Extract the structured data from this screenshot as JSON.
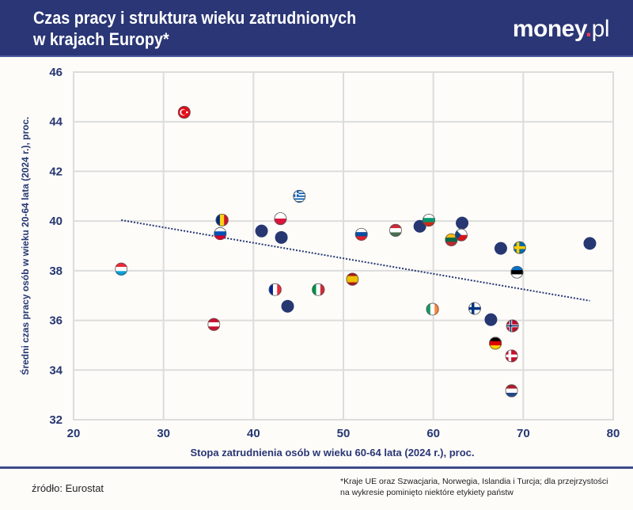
{
  "header": {
    "title_line1": "Czas pracy i struktura wieku zatrudnionych",
    "title_line2": "w krajach Europy*",
    "logo_main": "money",
    "logo_dot": ".",
    "logo_suffix": "pl"
  },
  "footer": {
    "source": "źródło: Eurostat",
    "note_line1": "*Kraje UE oraz Szwacjaria, Norwegia, Islandia i Turcja; dla przejrzystości",
    "note_line2": "na wykresie pominięto niektóre etykiety państw"
  },
  "colors": {
    "header": "#2a3675",
    "point": "#263772",
    "grid": "#dcdcdc",
    "trend": "#263772"
  },
  "chart_data": {
    "type": "scatter",
    "xlabel": "Stopa zatrudnienia osób w wieku 60-64 lata (2024 r.), proc.",
    "ylabel": "Średni czas pracy osób w wieku 20-64 lata (2024 r.), proc.",
    "xlim": [
      20,
      80
    ],
    "ylim": [
      32,
      46
    ],
    "xticks": [
      20,
      30,
      40,
      50,
      60,
      70,
      80
    ],
    "yticks": [
      32,
      34,
      36,
      38,
      40,
      42,
      44,
      46
    ],
    "grid": true,
    "trendline": {
      "style": "dotted",
      "x": [
        25.3,
        77.4
      ],
      "y": [
        40.04,
        36.79
      ]
    },
    "points": [
      {
        "flag": "tr",
        "x": 32.3,
        "y": 44.38
      },
      {
        "flag": "lu",
        "x": 25.3,
        "y": 38.07
      },
      {
        "flag": "ro",
        "x": 36.5,
        "y": 40.04
      },
      {
        "flag": "si",
        "x": 36.3,
        "y": 39.5
      },
      {
        "flag": "gr",
        "x": 45.1,
        "y": 41.0
      },
      {
        "flag": "pl",
        "x": 43.0,
        "y": 40.1
      },
      {
        "flag": "",
        "x": 40.9,
        "y": 39.6
      },
      {
        "flag": "",
        "x": 43.1,
        "y": 39.34
      },
      {
        "flag": "fr",
        "x": 42.4,
        "y": 37.24
      },
      {
        "flag": "it",
        "x": 47.2,
        "y": 37.24
      },
      {
        "flag": "",
        "x": 43.8,
        "y": 36.57
      },
      {
        "flag": "at",
        "x": 35.6,
        "y": 35.84
      },
      {
        "flag": "es",
        "x": 51.0,
        "y": 37.66
      },
      {
        "flag": "sk",
        "x": 52.0,
        "y": 39.47
      },
      {
        "flag": "hu",
        "x": 55.8,
        "y": 39.63
      },
      {
        "flag": "",
        "x": 58.5,
        "y": 39.79
      },
      {
        "flag": "bg",
        "x": 59.5,
        "y": 40.04
      },
      {
        "flag": "",
        "x": 63.2,
        "y": 39.92
      },
      {
        "flag": "lt",
        "x": 62.0,
        "y": 39.25
      },
      {
        "flag": "cz",
        "x": 63.1,
        "y": 39.44
      },
      {
        "flag": "",
        "x": 67.5,
        "y": 38.9
      },
      {
        "flag": "se",
        "x": 69.6,
        "y": 38.93
      },
      {
        "flag": "",
        "x": 77.4,
        "y": 39.1
      },
      {
        "flag": "ee",
        "x": 69.3,
        "y": 37.94
      },
      {
        "flag": "ie",
        "x": 59.9,
        "y": 36.45
      },
      {
        "flag": "fi",
        "x": 64.6,
        "y": 36.48
      },
      {
        "flag": "",
        "x": 66.4,
        "y": 36.03
      },
      {
        "flag": "no",
        "x": 68.8,
        "y": 35.78
      },
      {
        "flag": "de",
        "x": 66.9,
        "y": 35.08
      },
      {
        "flag": "dk",
        "x": 68.7,
        "y": 34.57
      },
      {
        "flag": "nl",
        "x": 68.7,
        "y": 33.17
      }
    ]
  }
}
